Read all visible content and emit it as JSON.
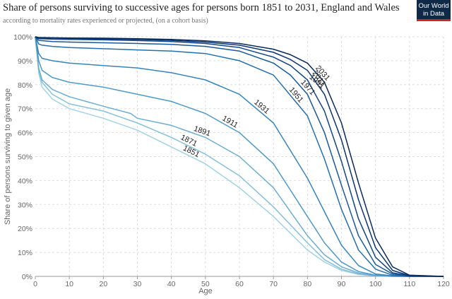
{
  "header": {
    "title": "Share of persons surviving  to successive ages for persons born 1851 to 2031, England and Wales",
    "subtitle": "according to mortality rates experienced or projected, (on a cohort basis)",
    "logo_line1": "Our World",
    "logo_line2": "in Data"
  },
  "chart_data": {
    "type": "line",
    "title": "Share of persons surviving  to successive ages for persons born 1851 to 2031, England and Wales",
    "subtitle": "according to mortality rates experienced or projected, (on a cohort basis)",
    "xlabel": "Age",
    "ylabel": "Share of persons surviving to given age",
    "xlim": [
      0,
      120
    ],
    "ylim": [
      0,
      100
    ],
    "x_ticks": [
      "0",
      "10",
      "20",
      "30",
      "40",
      "50",
      "60",
      "70",
      "80",
      "90",
      "100",
      "110",
      "120"
    ],
    "y_ticks": [
      "0%",
      "10%",
      "20%",
      "30%",
      "40%",
      "50%",
      "60%",
      "70%",
      "80%",
      "90%",
      "100%"
    ],
    "grid": true,
    "series": [
      {
        "name": "1851",
        "color": "#a3d3e3",
        "x": [
          0,
          1,
          2,
          5,
          10,
          20,
          30,
          40,
          50,
          60,
          70,
          80,
          85,
          90,
          95,
          100,
          105,
          110,
          120
        ],
        "y": [
          100,
          85,
          79,
          74,
          70,
          66,
          61,
          54,
          47,
          37,
          25,
          11,
          6,
          2.5,
          0.8,
          0.2,
          0,
          0,
          0
        ]
      },
      {
        "name": "1871",
        "color": "#86c0da",
        "x": [
          0,
          1,
          2,
          5,
          10,
          20,
          30,
          40,
          50,
          60,
          70,
          80,
          85,
          90,
          95,
          100,
          105,
          110,
          120
        ],
        "y": [
          100,
          86,
          81,
          76,
          72,
          69,
          64,
          58,
          51,
          42,
          29,
          14,
          7,
          3,
          1,
          0.3,
          0,
          0,
          0
        ]
      },
      {
        "name": "1891",
        "color": "#69aed2",
        "x": [
          0,
          1,
          2,
          5,
          10,
          20,
          28,
          30,
          40,
          50,
          60,
          70,
          80,
          85,
          90,
          95,
          100,
          105,
          110,
          120
        ],
        "y": [
          100,
          87,
          82,
          78,
          75,
          71,
          68,
          66,
          63,
          58,
          50,
          37,
          17,
          9,
          4,
          1.4,
          0.3,
          0,
          0,
          0
        ]
      },
      {
        "name": "1911",
        "color": "#4d9ac8",
        "x": [
          0,
          1,
          2,
          5,
          10,
          20,
          30,
          40,
          50,
          60,
          70,
          80,
          85,
          90,
          95,
          100,
          105,
          110,
          120
        ],
        "y": [
          100,
          90,
          86,
          83,
          81,
          79,
          76,
          73,
          68,
          60,
          47,
          25,
          14,
          6,
          2,
          0.5,
          0.1,
          0,
          0
        ]
      },
      {
        "name": "1931",
        "color": "#3585bd",
        "x": [
          0,
          1,
          2,
          5,
          10,
          20,
          30,
          40,
          50,
          60,
          70,
          80,
          85,
          90,
          95,
          100,
          105,
          110,
          120
        ],
        "y": [
          100,
          93,
          91,
          90,
          89,
          88,
          87,
          85,
          82,
          76,
          64,
          41,
          27,
          13,
          4.5,
          1,
          0.2,
          0,
          0
        ]
      },
      {
        "name": "1951",
        "color": "#246fae",
        "x": [
          0,
          1,
          2,
          5,
          10,
          20,
          30,
          40,
          50,
          60,
          70,
          80,
          85,
          90,
          95,
          100,
          105,
          110,
          120
        ],
        "y": [
          100,
          97,
          96.5,
          96,
          95.5,
          95,
          94.5,
          94,
          93,
          90,
          84,
          67,
          49,
          28,
          11,
          3,
          0.5,
          0,
          0
        ]
      },
      {
        "name": "1971",
        "color": "#18599c",
        "x": [
          0,
          1,
          5,
          10,
          20,
          30,
          40,
          50,
          60,
          70,
          75,
          80,
          85,
          90,
          95,
          100,
          105,
          110,
          120
        ],
        "y": [
          100,
          98.5,
          98,
          97.8,
          97.5,
          97.2,
          96.8,
          96,
          94,
          89,
          84,
          76,
          60,
          38,
          17,
          5,
          1,
          0.1,
          0
        ]
      },
      {
        "name": "1991",
        "color": "#114687",
        "x": [
          0,
          1,
          5,
          10,
          20,
          30,
          40,
          50,
          60,
          70,
          75,
          80,
          85,
          90,
          95,
          100,
          105,
          110,
          120
        ],
        "y": [
          100,
          99.2,
          99,
          98.9,
          98.7,
          98.4,
          98,
          97.2,
          95.5,
          91.5,
          88,
          82,
          69,
          48,
          24,
          8,
          1.5,
          0.2,
          0
        ]
      },
      {
        "name": "2011",
        "color": "#0b3572",
        "x": [
          0,
          1,
          5,
          10,
          20,
          30,
          40,
          50,
          60,
          70,
          75,
          80,
          85,
          90,
          95,
          100,
          105,
          110,
          120
        ],
        "y": [
          100,
          99.5,
          99.4,
          99.3,
          99.1,
          98.9,
          98.5,
          97.8,
          96.5,
          93.5,
          90.5,
          86,
          76,
          57,
          32,
          12,
          2.5,
          0.3,
          0
        ]
      },
      {
        "name": "2031",
        "color": "#082a5c",
        "x": [
          0,
          1,
          5,
          10,
          20,
          30,
          40,
          50,
          60,
          70,
          75,
          80,
          85,
          90,
          95,
          100,
          105,
          110,
          120
        ],
        "y": [
          100,
          99.7,
          99.6,
          99.5,
          99.4,
          99.2,
          98.9,
          98.3,
          97.2,
          94.8,
          92.5,
          89,
          81,
          64,
          39,
          16,
          4,
          0.5,
          0
        ]
      }
    ]
  }
}
